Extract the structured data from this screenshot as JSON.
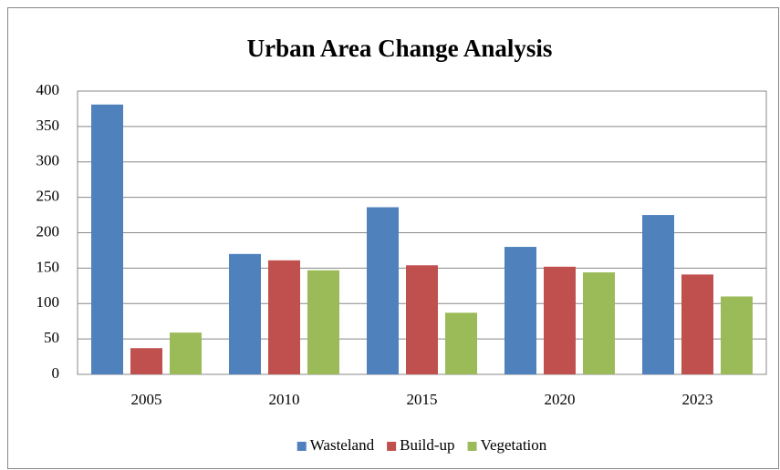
{
  "chart_data": {
    "type": "bar",
    "title": "Urban Area Change Analysis",
    "categories": [
      "2005",
      "2010",
      "2015",
      "2020",
      "2023"
    ],
    "series": [
      {
        "name": "Wasteland",
        "color": "#4f81bd",
        "values": [
          381,
          170,
          236,
          180,
          225
        ]
      },
      {
        "name": "Build-up",
        "color": "#c0504d",
        "values": [
          37,
          161,
          154,
          152,
          141
        ]
      },
      {
        "name": "Vegetation",
        "color": "#9bbb59",
        "values": [
          59,
          147,
          87,
          144,
          110
        ]
      }
    ],
    "ylim": [
      0,
      400
    ],
    "yticks": [
      0,
      50,
      100,
      150,
      200,
      250,
      300,
      350,
      400
    ],
    "grid": true,
    "legend": "bottom"
  }
}
